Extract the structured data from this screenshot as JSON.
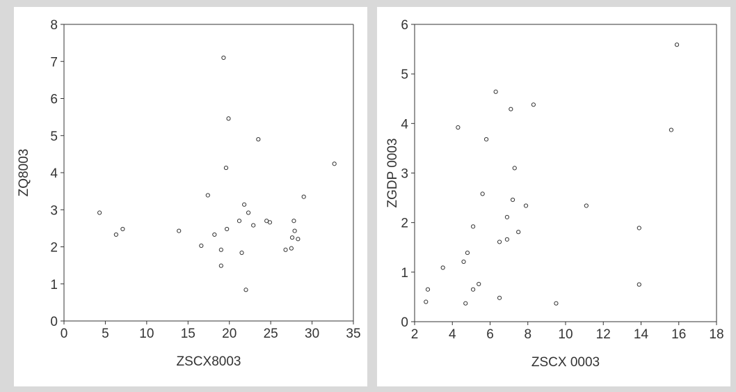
{
  "chart_data": [
    {
      "type": "scatter",
      "title": "",
      "xlabel": "ZSCX8003",
      "ylabel": "ZQ8003",
      "xlim": [
        0,
        35
      ],
      "ylim": [
        0,
        8
      ],
      "xticks": [
        0,
        5,
        10,
        15,
        20,
        25,
        30,
        35
      ],
      "yticks": [
        0,
        1,
        2,
        3,
        4,
        5,
        6,
        7,
        8
      ],
      "grid": false,
      "points": [
        {
          "x": 4.3,
          "y": 2.92
        },
        {
          "x": 6.3,
          "y": 2.33
        },
        {
          "x": 7.1,
          "y": 2.48
        },
        {
          "x": 13.9,
          "y": 2.43
        },
        {
          "x": 16.6,
          "y": 2.03
        },
        {
          "x": 17.4,
          "y": 3.39
        },
        {
          "x": 18.2,
          "y": 2.33
        },
        {
          "x": 19.0,
          "y": 1.92
        },
        {
          "x": 19.0,
          "y": 1.49
        },
        {
          "x": 19.3,
          "y": 7.1
        },
        {
          "x": 19.6,
          "y": 4.13
        },
        {
          "x": 19.7,
          "y": 2.48
        },
        {
          "x": 19.9,
          "y": 5.46
        },
        {
          "x": 21.2,
          "y": 2.7
        },
        {
          "x": 21.5,
          "y": 1.84
        },
        {
          "x": 21.8,
          "y": 3.14
        },
        {
          "x": 22.0,
          "y": 0.84
        },
        {
          "x": 22.3,
          "y": 2.92
        },
        {
          "x": 22.9,
          "y": 2.58
        },
        {
          "x": 23.5,
          "y": 4.9
        },
        {
          "x": 24.5,
          "y": 2.7
        },
        {
          "x": 24.9,
          "y": 2.66
        },
        {
          "x": 26.8,
          "y": 1.92
        },
        {
          "x": 27.5,
          "y": 1.96
        },
        {
          "x": 27.6,
          "y": 2.25
        },
        {
          "x": 27.8,
          "y": 2.7
        },
        {
          "x": 27.9,
          "y": 2.43
        },
        {
          "x": 28.3,
          "y": 2.21
        },
        {
          "x": 29.0,
          "y": 3.35
        },
        {
          "x": 32.7,
          "y": 4.24
        }
      ]
    },
    {
      "type": "scatter",
      "title": "",
      "xlabel": "ZSCX 0003",
      "ylabel": "ZGDP 0003",
      "xlim": [
        2,
        18
      ],
      "ylim": [
        0,
        6
      ],
      "xticks": [
        2,
        4,
        6,
        8,
        10,
        12,
        14,
        16,
        18
      ],
      "yticks": [
        0,
        1,
        2,
        3,
        4,
        5,
        6
      ],
      "grid": false,
      "points": [
        {
          "x": 2.6,
          "y": 0.4
        },
        {
          "x": 2.7,
          "y": 0.65
        },
        {
          "x": 3.5,
          "y": 1.09
        },
        {
          "x": 4.3,
          "y": 3.92
        },
        {
          "x": 4.6,
          "y": 1.21
        },
        {
          "x": 4.7,
          "y": 0.37
        },
        {
          "x": 4.8,
          "y": 1.39
        },
        {
          "x": 5.1,
          "y": 0.65
        },
        {
          "x": 5.1,
          "y": 1.92
        },
        {
          "x": 5.4,
          "y": 0.76
        },
        {
          "x": 5.6,
          "y": 2.58
        },
        {
          "x": 5.8,
          "y": 3.68
        },
        {
          "x": 6.3,
          "y": 4.64
        },
        {
          "x": 6.5,
          "y": 1.61
        },
        {
          "x": 6.5,
          "y": 0.48
        },
        {
          "x": 6.9,
          "y": 2.11
        },
        {
          "x": 6.9,
          "y": 1.66
        },
        {
          "x": 7.1,
          "y": 4.29
        },
        {
          "x": 7.2,
          "y": 2.46
        },
        {
          "x": 7.3,
          "y": 3.1
        },
        {
          "x": 7.5,
          "y": 1.81
        },
        {
          "x": 7.9,
          "y": 2.34
        },
        {
          "x": 8.3,
          "y": 4.38
        },
        {
          "x": 9.5,
          "y": 0.37
        },
        {
          "x": 11.1,
          "y": 2.34
        },
        {
          "x": 13.9,
          "y": 1.89
        },
        {
          "x": 13.9,
          "y": 0.75
        },
        {
          "x": 15.6,
          "y": 3.87
        },
        {
          "x": 15.9,
          "y": 5.59
        }
      ]
    }
  ]
}
